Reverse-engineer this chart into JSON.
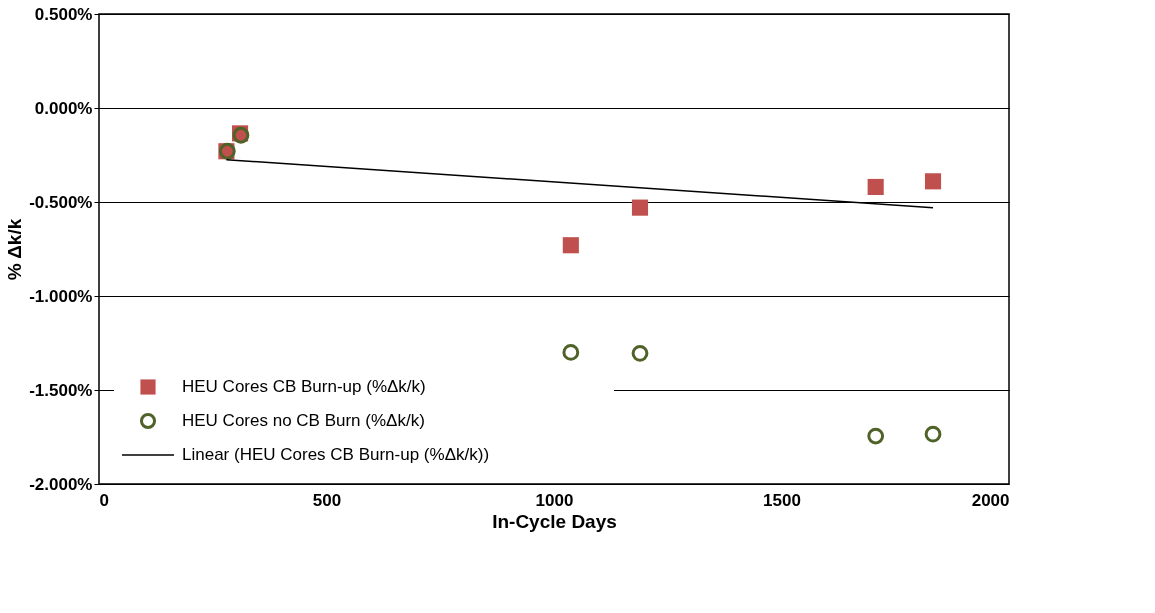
{
  "chart_data": {
    "type": "scatter",
    "xlabel": "In-Cycle Days",
    "ylabel": "% Δk/k",
    "xlim": [
      0,
      2000
    ],
    "xticks": [
      0,
      500,
      1000,
      1500,
      2000
    ],
    "ylim": [
      -2.0,
      0.5
    ],
    "yticks": [
      {
        "value": 0.5,
        "label": "0.500%"
      },
      {
        "value": 0.0,
        "label": "0.000%"
      },
      {
        "value": -0.5,
        "label": "-0.500%"
      },
      {
        "value": -1.0,
        "label": "-1.000%"
      },
      {
        "value": -1.5,
        "label": "-1.500%"
      },
      {
        "value": -2.0,
        "label": "-2.000%"
      }
    ],
    "grid": "y",
    "legend": "bottom left",
    "series": [
      {
        "name": "HEU Cores CB Burn-up (%Δk/k)",
        "marker": "square",
        "color": "#c0504d",
        "x": [
          280,
          310,
          1037,
          1189,
          1707,
          1833
        ],
        "values": [
          -0.23,
          -0.135,
          -0.73,
          -0.53,
          -0.42,
          -0.39
        ]
      },
      {
        "name": "HEU Cores no CB Burn (%Δk/k)",
        "marker": "circle",
        "color": "#4f6228",
        "x": [
          282,
          312,
          1037,
          1189,
          1707,
          1833
        ],
        "values": [
          -0.23,
          -0.145,
          -1.3,
          -1.305,
          -1.745,
          -1.735
        ]
      },
      {
        "name": "Linear (HEU Cores CB Burn-up (%Δk/k))",
        "type": "line",
        "line_style": "solid",
        "color": "#000000",
        "x": [
          280,
          1833
        ],
        "values": [
          -0.275,
          -0.53
        ]
      }
    ]
  }
}
